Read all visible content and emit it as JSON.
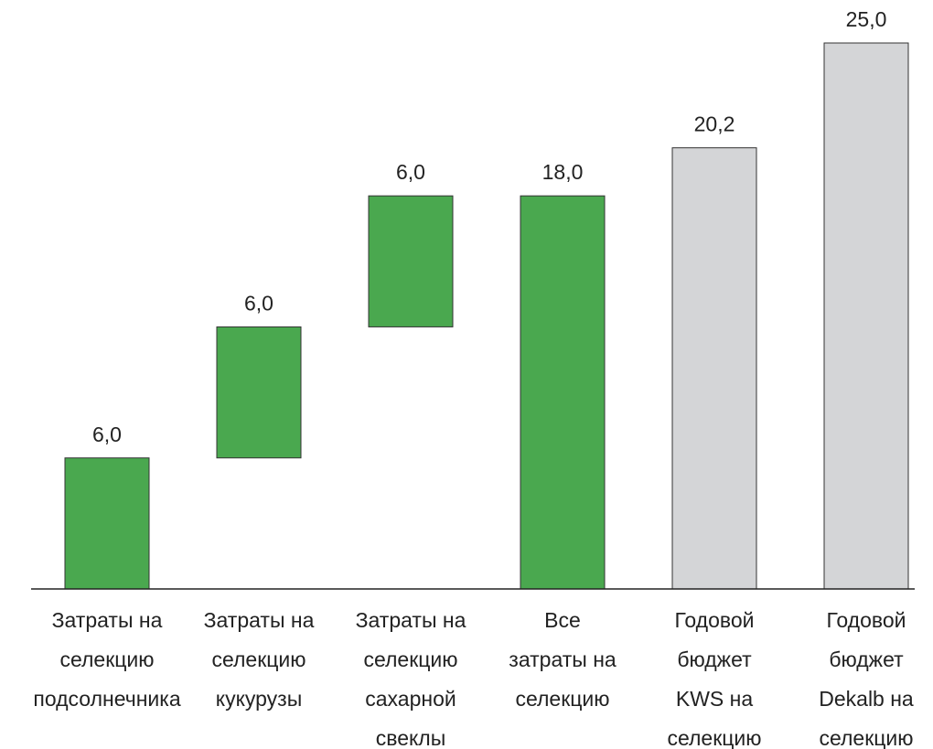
{
  "chart_data": {
    "type": "waterfall",
    "categories": [
      [
        "Затраты на",
        "селекцию",
        "подсолнечника"
      ],
      [
        "Затраты на",
        "селекцию",
        "кукурузы"
      ],
      [
        "Затраты на",
        "селекцию",
        "сахарной",
        "свеклы"
      ],
      [
        "Все",
        "затраты на",
        "селекцию"
      ],
      [
        "Годовой",
        "бюджет",
        "KWS на",
        "селекцию"
      ],
      [
        "Годовой",
        "бюджет",
        "Dekalb на",
        "селекцию"
      ]
    ],
    "values": [
      6.0,
      6.0,
      6.0,
      18.0,
      20.2,
      25.0
    ],
    "value_labels": [
      "6,0",
      "6,0",
      "6,0",
      "18,0",
      "20,2",
      "25,0"
    ],
    "measure": [
      "relative",
      "relative",
      "relative",
      "total",
      "total",
      "total"
    ],
    "colors": [
      "#4aa84f",
      "#4aa84f",
      "#4aa84f",
      "#4aa84f",
      "#d4d5d7",
      "#d4d5d7"
    ],
    "ylim": [
      0,
      25
    ]
  }
}
